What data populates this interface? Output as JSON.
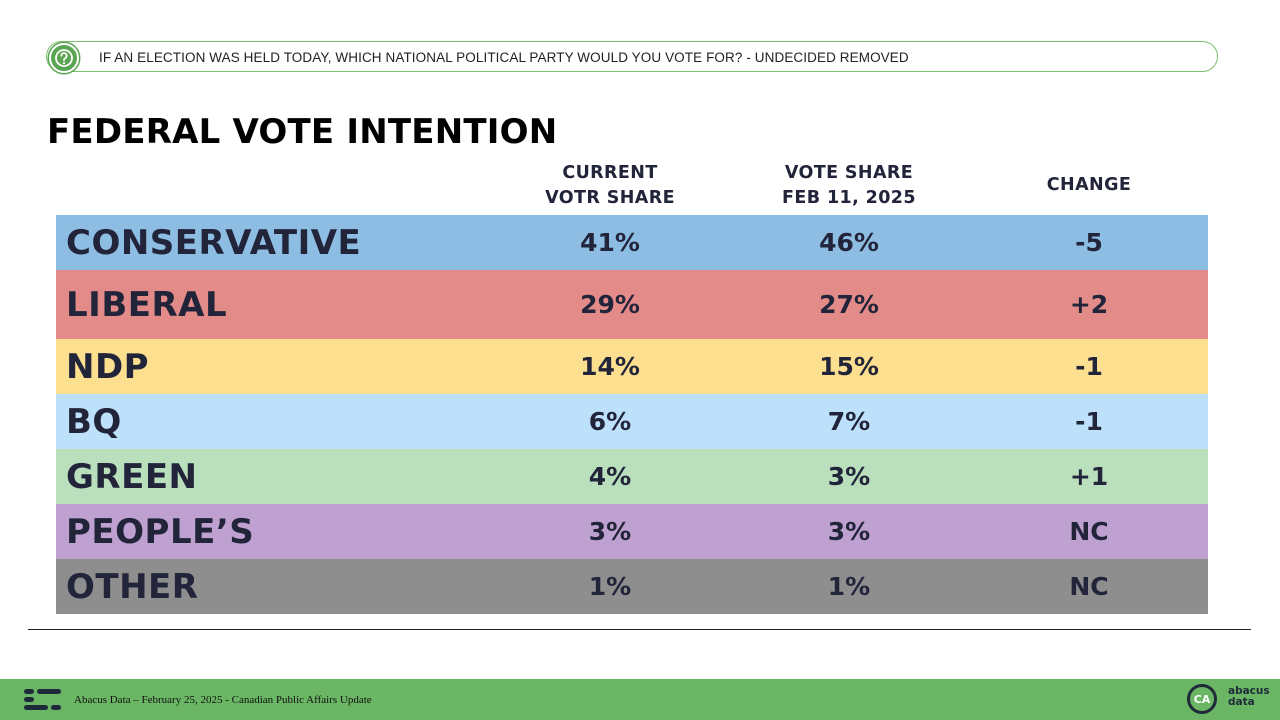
{
  "question": "IF AN ELECTION WAS HELD TODAY, WHICH NATIONAL POLITICAL PARTY WOULD YOU VOTE FOR? - UNDECIDED REMOVED",
  "title": "FEDERAL VOTE INTENTION",
  "columns": {
    "current": [
      "CURRENT",
      "VOTR SHARE"
    ],
    "previous": [
      "VOTE SHARE",
      "FEB 11, 2025"
    ],
    "change": "CHANGE"
  },
  "chart_data": {
    "type": "table",
    "title": "FEDERAL VOTE INTENTION",
    "columns": [
      "CURRENT VOTR SHARE",
      "VOTE SHARE FEB 11, 2025",
      "CHANGE"
    ],
    "rows": [
      {
        "party": "CONSERVATIVE",
        "current": "41%",
        "previous": "46%",
        "change": "-5",
        "color": "#8dbde3"
      },
      {
        "party": "LIBERAL",
        "current": "29%",
        "previous": "27%",
        "change": "+2",
        "color": "#e38b89"
      },
      {
        "party": "NDP",
        "current": "14%",
        "previous": "15%",
        "change": "-1",
        "color": "#fce08f"
      },
      {
        "party": "BQ",
        "current": "6%",
        "previous": "7%",
        "change": "-1",
        "color": "#bde1fa"
      },
      {
        "party": "GREEN",
        "current": "4%",
        "previous": "3%",
        "change": "+1",
        "color": "#badfbd"
      },
      {
        "party": "PEOPLE’S",
        "current": "3%",
        "previous": "3%",
        "change": "NC",
        "color": "#bea1d0"
      },
      {
        "party": "OTHER",
        "current": "1%",
        "previous": "1%",
        "change": "NC",
        "color": "#8e8e8e"
      }
    ]
  },
  "footer": {
    "text": "Abacus Data – February 25, 2025 - Canadian Public Affairs Update",
    "brand_badge": "CA",
    "brand_line1": "abacus",
    "brand_line2": "data"
  },
  "colors": {
    "accent_green": "#6ab664",
    "text_navy": "#22243a"
  }
}
